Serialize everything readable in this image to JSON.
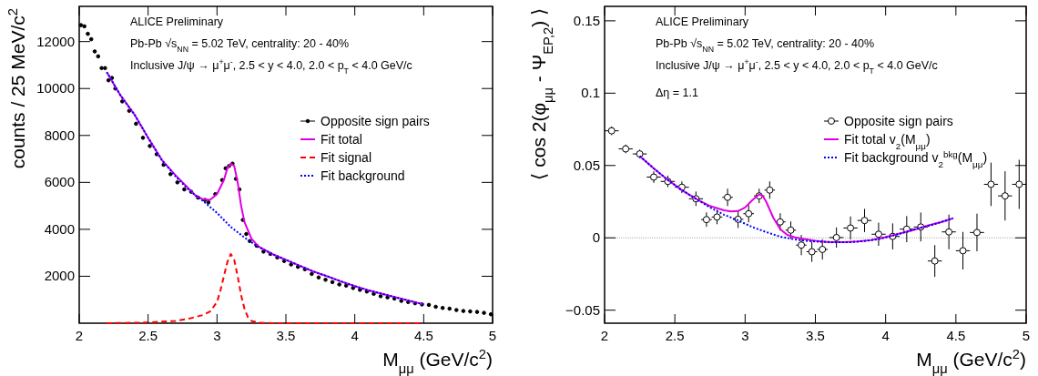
{
  "chart_data": [
    {
      "type": "scatter",
      "xlabel": "M$_{μμ}$ (GeV/c$^{2}$)",
      "ylabel": "counts / 25 MeV/c$^{2}$",
      "annotations": [
        "ALICE Preliminary",
        "Pb-Pb √s$_{NN}$ = 5.02 TeV, centrality: 20 - 40%",
        "Inclusive J/ψ → μ$^{+}$μ$^{-}$,  2.5 < y < 4.0,  2.0 <  p$_{T}$ < 4.0 GeV/c"
      ],
      "xlim": [
        2,
        5
      ],
      "ylim": [
        0,
        13500
      ],
      "xticks": [
        2,
        2.5,
        3,
        3.5,
        4,
        4.5,
        5
      ],
      "yticks": [
        2000,
        4000,
        6000,
        8000,
        10000,
        12000
      ],
      "legend": "right",
      "series": [
        {
          "name": "Opposite sign pairs",
          "color": "#000000",
          "marker": "circle",
          "x": [
            2.0125,
            2.0375,
            2.0625,
            2.0875,
            2.1125,
            2.1375,
            2.1625,
            2.1875,
            2.2125,
            2.2375,
            2.2625,
            2.3125,
            2.3625,
            2.4125,
            2.4625,
            2.5125,
            2.5625,
            2.6125,
            2.6625,
            2.7125,
            2.7625,
            2.8125,
            2.8625,
            2.9125,
            2.9375,
            2.9875,
            3.0375,
            3.0625,
            3.0875,
            3.1125,
            3.1375,
            3.1625,
            3.1875,
            3.2125,
            3.2375,
            3.2875,
            3.3375,
            3.3875,
            3.4375,
            3.4875,
            3.5375,
            3.5875,
            3.6375,
            3.6875,
            3.7375,
            3.7875,
            3.8375,
            3.8875,
            3.9375,
            3.9875,
            4.0375,
            4.0875,
            4.1375,
            4.1875,
            4.2375,
            4.2875,
            4.3375,
            4.3875,
            4.4375,
            4.4875,
            4.5375,
            4.5875,
            4.6375,
            4.6875,
            4.7375,
            4.7875,
            4.8375,
            4.8875,
            4.9375,
            4.9875
          ],
          "values": [
            12700,
            12650,
            12330,
            12100,
            11580,
            11370,
            10870,
            10870,
            10350,
            10450,
            10000,
            9450,
            9050,
            8500,
            7900,
            7550,
            7200,
            6750,
            6350,
            6000,
            5700,
            5600,
            5350,
            5250,
            5150,
            5500,
            6100,
            6600,
            6700,
            6800,
            6150,
            5700,
            4400,
            3800,
            3500,
            3300,
            3050,
            2950,
            2800,
            2650,
            2500,
            2400,
            2300,
            2100,
            1950,
            1850,
            1750,
            1650,
            1600,
            1500,
            1420,
            1350,
            1250,
            1150,
            1100,
            1050,
            950,
            900,
            850,
            800,
            780,
            700,
            650,
            620,
            560,
            520,
            500,
            480,
            440,
            380
          ]
        },
        {
          "name": "Fit total",
          "type": "line",
          "color": "#e000e0",
          "line_style": "solid",
          "x": [
            2.2,
            2.3,
            2.4,
            2.5,
            2.6,
            2.7,
            2.8,
            2.85,
            2.9,
            2.95,
            3.0,
            3.05,
            3.075,
            3.1,
            3.125,
            3.15,
            3.175,
            3.2,
            3.25,
            3.3,
            3.4,
            3.5,
            3.6,
            3.7,
            3.8,
            3.9,
            4.0,
            4.1,
            4.2,
            4.3,
            4.4,
            4.5
          ],
          "values": [
            10700,
            9700,
            8900,
            7900,
            6950,
            6300,
            5700,
            5400,
            5280,
            5260,
            5500,
            6100,
            6600,
            6800,
            6700,
            6000,
            5000,
            4300,
            3600,
            3270,
            2950,
            2700,
            2450,
            2200,
            2000,
            1780,
            1580,
            1400,
            1250,
            1100,
            950,
            800
          ]
        },
        {
          "name": "Fit signal",
          "type": "line",
          "color": "#ff0000",
          "line_style": "dashed",
          "x": [
            2.2,
            2.5,
            2.7,
            2.8,
            2.9,
            2.95,
            3.0,
            3.025,
            3.05,
            3.075,
            3.1,
            3.125,
            3.15,
            3.175,
            3.2,
            3.225,
            3.25,
            3.3,
            3.4,
            4.5
          ],
          "values": [
            0,
            30,
            100,
            200,
            350,
            500,
            900,
            1400,
            2000,
            2600,
            2950,
            2700,
            2000,
            1200,
            600,
            250,
            100,
            20,
            0,
            0
          ]
        },
        {
          "name": "Fit background",
          "type": "line",
          "color": "#0000ff",
          "line_style": "dotted",
          "x": [
            2.2,
            2.3,
            2.4,
            2.5,
            2.6,
            2.7,
            2.8,
            2.9,
            3.0,
            3.1,
            3.2,
            3.3,
            3.4,
            3.5,
            3.6,
            3.7,
            3.8,
            3.9,
            4.0,
            4.1,
            4.2,
            4.3,
            4.4,
            4.5
          ],
          "values": [
            10700,
            9700,
            8900,
            7900,
            6950,
            6250,
            5650,
            5200,
            4700,
            4100,
            3650,
            3250,
            2950,
            2700,
            2450,
            2200,
            2000,
            1780,
            1580,
            1400,
            1250,
            1100,
            950,
            800
          ]
        }
      ]
    },
    {
      "type": "scatter",
      "xlabel": "M$_{μμ}$ (GeV/c$^{2}$)",
      "ylabel": "⟨ cos 2(φ$_{μμ}$ - Ψ$_{EP,2}$) ⟩",
      "annotations": [
        "ALICE Preliminary",
        "Pb-Pb √s$_{NN}$ = 5.02 TeV, centrality: 20 - 40%",
        "Inclusive J/ψ → μ$^{+}$μ$^{-}$,  2.5 < y < 4.0,  2.0 <  p$_{T}$ < 4.0 GeV/c",
        "Δη = 1.1"
      ],
      "xlim": [
        2,
        5
      ],
      "ylim": [
        -0.059,
        0.16
      ],
      "xticks": [
        2,
        2.5,
        3,
        3.5,
        4,
        4.5,
        5
      ],
      "yticks": [
        {
          "value": -0.05,
          "label": "−0.05"
        },
        0,
        0.05,
        0.1,
        0.15
      ],
      "legend": "right",
      "ref_lines": [
        {
          "axis": "y",
          "value": 0,
          "color": "#b0b0b0",
          "line_style": "dotted"
        }
      ],
      "series": [
        {
          "name": "Opposite sign pairs",
          "color": "#000000",
          "marker": "circle",
          "x": [
            2.05,
            2.15,
            2.25,
            2.35,
            2.45,
            2.55,
            2.65,
            2.725,
            2.8,
            2.875,
            2.95,
            3.025,
            3.1,
            3.175,
            3.25,
            3.325,
            3.4,
            3.475,
            3.55,
            3.65,
            3.75,
            3.85,
            3.95,
            4.05,
            4.15,
            4.25,
            4.35,
            4.45,
            4.55,
            4.65,
            4.75,
            4.85,
            4.95
          ],
          "values": [
            0.074,
            0.0615,
            0.058,
            0.042,
            0.039,
            0.035,
            0.027,
            0.0126,
            0.0144,
            0.028,
            0.0128,
            0.0167,
            0.029,
            0.033,
            0.011,
            0.0053,
            -0.005,
            -0.0096,
            -0.008,
            0.0002,
            0.0068,
            0.012,
            0.0025,
            0.001,
            0.006,
            0.0075,
            -0.016,
            0.0041,
            -0.0089,
            0.0037,
            0.037,
            0.029,
            0.037
          ],
          "errors": [
            0.003,
            0.003,
            0.003,
            0.004,
            0.004,
            0.004,
            0.005,
            0.005,
            0.005,
            0.006,
            0.006,
            0.006,
            0.005,
            0.006,
            0.006,
            0.006,
            0.007,
            0.007,
            0.007,
            0.007,
            0.008,
            0.008,
            0.008,
            0.009,
            0.009,
            0.01,
            0.011,
            0.012,
            0.013,
            0.013,
            0.015,
            0.017,
            0.017
          ],
          "xerrors": [
            0.05,
            0.05,
            0.05,
            0.05,
            0.05,
            0.05,
            0.05,
            0.0375,
            0.0375,
            0.0375,
            0.0375,
            0.0375,
            0.0375,
            0.0375,
            0.0375,
            0.0375,
            0.0375,
            0.0375,
            0.0375,
            0.05,
            0.05,
            0.05,
            0.05,
            0.05,
            0.05,
            0.05,
            0.05,
            0.05,
            0.05,
            0.05,
            0.05,
            0.05,
            0.05
          ]
        },
        {
          "name": "Fit total v$_{2}$(M$_{μμ}$)",
          "type": "line",
          "color": "#e000e0",
          "line_style": "solid",
          "x": [
            2.25,
            2.35,
            2.45,
            2.55,
            2.65,
            2.75,
            2.85,
            2.9,
            2.95,
            3.0,
            3.05,
            3.1,
            3.125,
            3.15,
            3.2,
            3.25,
            3.3,
            3.35,
            3.4,
            3.5,
            3.6,
            3.7,
            3.8,
            3.9,
            4.0,
            4.1,
            4.2,
            4.3,
            4.4,
            4.48
          ],
          "values": [
            0.0565,
            0.048,
            0.04,
            0.033,
            0.027,
            0.022,
            0.019,
            0.0182,
            0.0185,
            0.021,
            0.026,
            0.03,
            0.029,
            0.025,
            0.014,
            0.006,
            0.002,
            0.0005,
            -0.0005,
            -0.002,
            -0.003,
            -0.003,
            -0.0025,
            -0.0015,
            0.0005,
            0.003,
            0.0055,
            0.0085,
            0.011,
            0.0135
          ]
        },
        {
          "name": "Fit background v$_{2}$$^{bkg}$(M$_{μμ}$)",
          "type": "line",
          "color": "#0000ff",
          "line_style": "dotted",
          "x": [
            2.25,
            2.35,
            2.45,
            2.55,
            2.65,
            2.75,
            2.85,
            2.95,
            3.05,
            3.15,
            3.25,
            3.35,
            3.45,
            3.55,
            3.65,
            3.75,
            3.85,
            3.95,
            4.05,
            4.15,
            4.25,
            4.35,
            4.48
          ],
          "values": [
            0.0565,
            0.048,
            0.04,
            0.033,
            0.027,
            0.021,
            0.016,
            0.012,
            0.0075,
            0.004,
            0.0008,
            -0.001,
            -0.0022,
            -0.0028,
            -0.003,
            -0.003,
            -0.0022,
            -0.001,
            0.0015,
            0.0042,
            0.007,
            0.0095,
            0.0135
          ]
        }
      ]
    }
  ]
}
